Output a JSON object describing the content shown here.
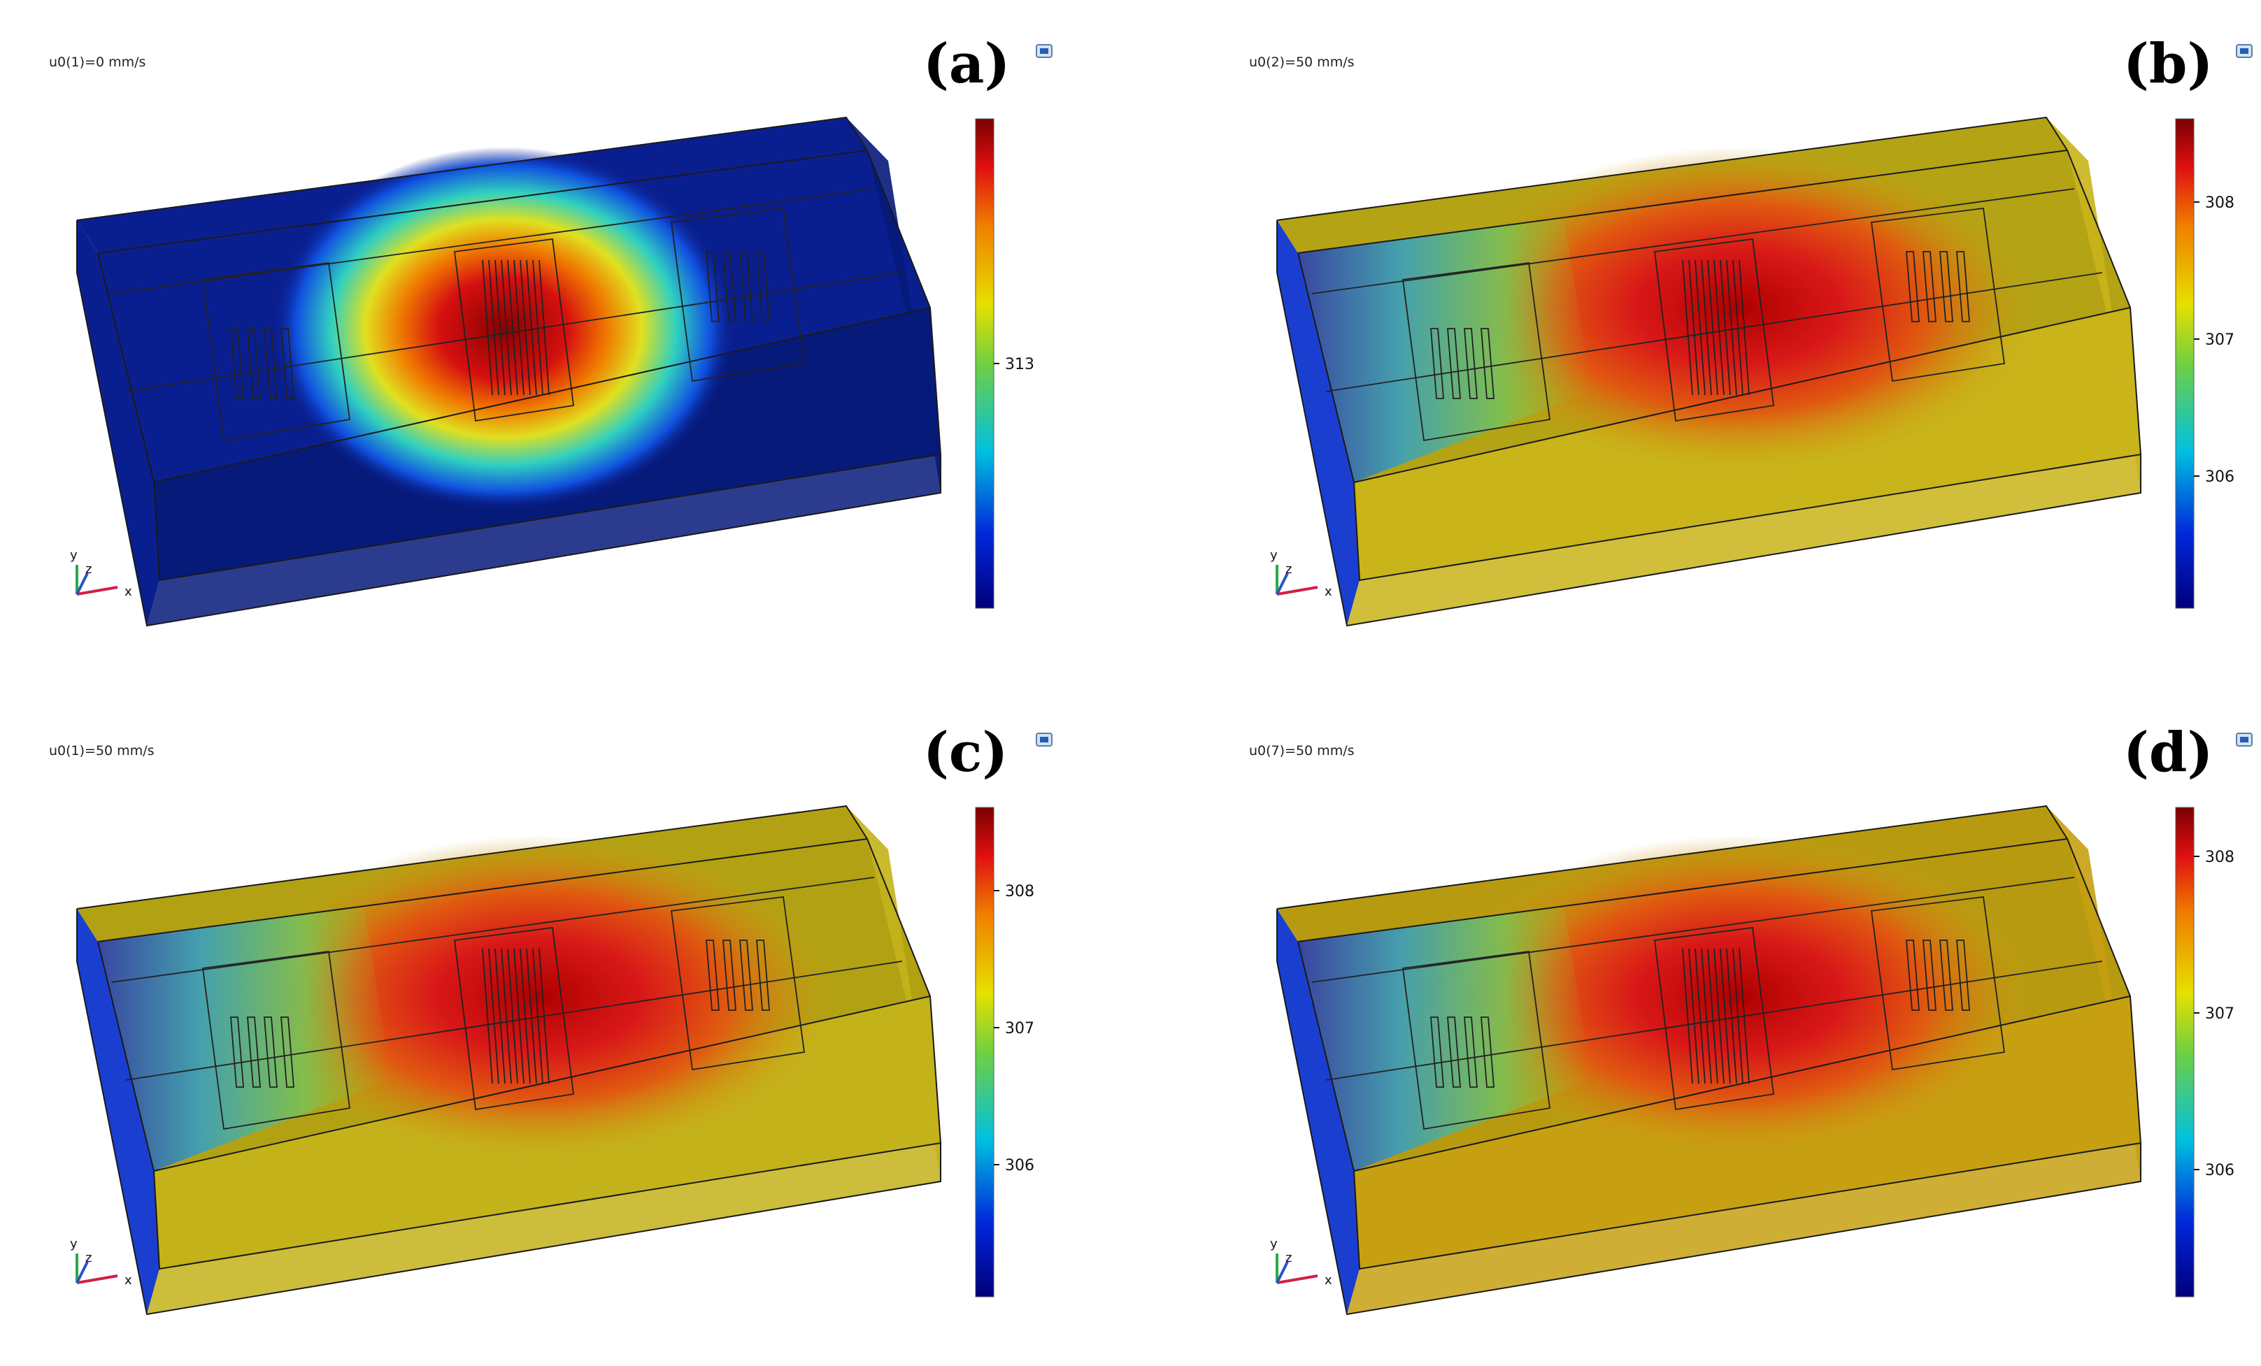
{
  "panels": [
    {
      "label": "(a)",
      "param_text": "u0(1)=0 mm/s",
      "colorbar": {
        "ticks": [
          "313"
        ]
      },
      "colors": {
        "top": "#0a1f8f",
        "base": "#061a7a",
        "hot": "#b80000",
        "inlet": "#0a1f8f"
      }
    },
    {
      "label": "(b)",
      "param_text": "u0(2)=50 mm/s",
      "colorbar": {
        "ticks": [
          "308",
          "307",
          "306"
        ]
      },
      "colors": {
        "top": "#b4a314",
        "base": "#c9b41a",
        "hot": "#c01010",
        "inlet": "#1a3fd0"
      }
    },
    {
      "label": "(c)",
      "param_text": "u0(1)=50 mm/s",
      "colorbar": {
        "ticks": [
          "308",
          "307",
          "306"
        ]
      },
      "colors": {
        "top": "#b3a114",
        "base": "#c4b21a",
        "hot": "#c21010",
        "inlet": "#1a3fd0"
      }
    },
    {
      "label": "(d)",
      "param_text": "u0(7)=50 mm/s",
      "colorbar": {
        "ticks": [
          "308",
          "307",
          "306"
        ]
      },
      "colors": {
        "top": "#b89a10",
        "base": "#c7a012",
        "hot": "#c01010",
        "inlet": "#1a3fd0"
      }
    }
  ],
  "axis_triad": {
    "x": "x",
    "y": "y",
    "z": "z"
  }
}
